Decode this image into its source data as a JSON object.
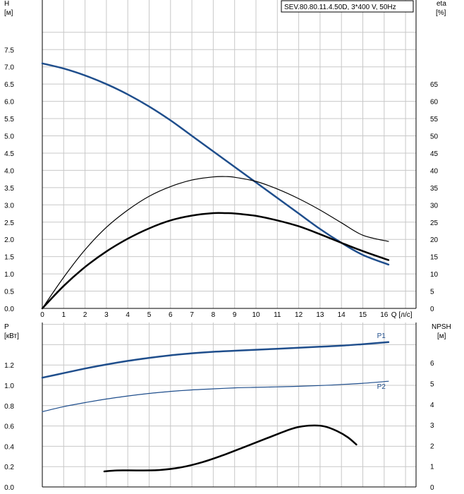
{
  "chart_data": [
    {
      "type": "line",
      "title": "SEV.80.80.11.4.50D, 3*400 V, 50Hz",
      "left_axis": {
        "label": "H",
        "unit": "[м]",
        "range": [
          0,
          8.0
        ],
        "ticks": [
          "0.0",
          "0.5",
          "1.0",
          "1.5",
          "2.0",
          "2.5",
          "3.0",
          "3.5",
          "4.0",
          "4.5",
          "5.0",
          "5.5",
          "6.0",
          "6.5",
          "7.0",
          "7.5"
        ]
      },
      "right_axis": {
        "label": "eta",
        "unit": "[%]",
        "range": [
          0,
          80
        ],
        "ticks": [
          "0",
          "5",
          "10",
          "15",
          "20",
          "25",
          "30",
          "35",
          "40",
          "45",
          "50",
          "55",
          "60",
          "65"
        ]
      },
      "x_axis": {
        "label": "Q [л/с]",
        "range": [
          0,
          17
        ],
        "ticks": [
          "0",
          "1",
          "2",
          "3",
          "4",
          "5",
          "6",
          "7",
          "8",
          "9",
          "10",
          "11",
          "12",
          "13",
          "14",
          "15",
          "16"
        ]
      },
      "grid": true,
      "series": [
        {
          "name": "",
          "axis": "left",
          "color": "#1f4e8c",
          "width": 2.5,
          "x": [
            0,
            1,
            2,
            3,
            4,
            5,
            6,
            7,
            8,
            9,
            10,
            11,
            12,
            13,
            14,
            15,
            16.2
          ],
          "y": [
            7.1,
            6.95,
            6.75,
            6.5,
            6.2,
            5.85,
            5.45,
            5.0,
            4.55,
            4.1,
            3.65,
            3.2,
            2.75,
            2.3,
            1.9,
            1.55,
            1.27
          ]
        },
        {
          "name": "",
          "axis": "right",
          "color": "#000000",
          "width": 1.2,
          "x": [
            0,
            1,
            2,
            3,
            4,
            5,
            6,
            7,
            8,
            8.6,
            9,
            10,
            11,
            12,
            13,
            14,
            15,
            16.2
          ],
          "y": [
            0,
            9,
            17,
            23.5,
            28.5,
            32.5,
            35.3,
            37.2,
            38.1,
            38.2,
            38.0,
            36.8,
            34.6,
            31.8,
            28.5,
            24.8,
            21.2,
            19.4
          ]
        },
        {
          "name": "",
          "axis": "right",
          "color": "#000000",
          "width": 2.5,
          "x": [
            0,
            1,
            2,
            3,
            4,
            5,
            6,
            7,
            8,
            8.6,
            9,
            10,
            11,
            12,
            13,
            14,
            15,
            16.2
          ],
          "y": [
            0,
            6.5,
            12,
            16.5,
            20.2,
            23.2,
            25.5,
            26.9,
            27.6,
            27.6,
            27.5,
            26.8,
            25.5,
            23.8,
            21.5,
            19.0,
            16.6,
            14.0
          ]
        }
      ]
    },
    {
      "type": "line",
      "left_axis": {
        "label": "P",
        "unit": "[кВт]",
        "range": [
          0,
          1.4
        ],
        "ticks": [
          "0.0",
          "0.2",
          "0.4",
          "0.6",
          "0.8",
          "1.0",
          "1.2"
        ]
      },
      "right_axis": {
        "label": "NPSH",
        "unit": "[м]",
        "range": [
          0,
          7
        ],
        "ticks": [
          "0",
          "1",
          "2",
          "3",
          "4",
          "5",
          "6"
        ]
      },
      "x_axis": {
        "range": [
          0,
          17
        ]
      },
      "grid": true,
      "series": [
        {
          "name": "P1",
          "axis": "left",
          "color": "#1f4e8c",
          "width": 2.5,
          "x": [
            0,
            1,
            2,
            3,
            4,
            5,
            6,
            7,
            8,
            9,
            10,
            11,
            12,
            13,
            14,
            15,
            16.2
          ],
          "y": [
            1.075,
            1.12,
            1.165,
            1.205,
            1.24,
            1.27,
            1.295,
            1.315,
            1.33,
            1.34,
            1.35,
            1.36,
            1.37,
            1.38,
            1.39,
            1.405,
            1.425
          ]
        },
        {
          "name": "P2",
          "axis": "left",
          "color": "#1f4e8c",
          "width": 1.2,
          "x": [
            0,
            1,
            2,
            3,
            4,
            5,
            6,
            7,
            8,
            9,
            10,
            11,
            12,
            13,
            14,
            15,
            16.2
          ],
          "y": [
            0.74,
            0.79,
            0.83,
            0.865,
            0.895,
            0.92,
            0.94,
            0.955,
            0.965,
            0.975,
            0.98,
            0.985,
            0.99,
            0.998,
            1.008,
            1.02,
            1.04
          ]
        },
        {
          "name": "",
          "axis": "right",
          "color": "#000000",
          "width": 2.5,
          "x": [
            2.9,
            3.5,
            4.5,
            5.5,
            6.5,
            7.5,
            8.5,
            9.5,
            10.5,
            11.5,
            12.0,
            12.6,
            13.2,
            13.8,
            14.3,
            14.7
          ],
          "y": [
            0.75,
            0.8,
            0.8,
            0.82,
            0.95,
            1.2,
            1.55,
            1.95,
            2.35,
            2.75,
            2.9,
            2.97,
            2.93,
            2.7,
            2.4,
            2.05
          ]
        }
      ]
    }
  ]
}
